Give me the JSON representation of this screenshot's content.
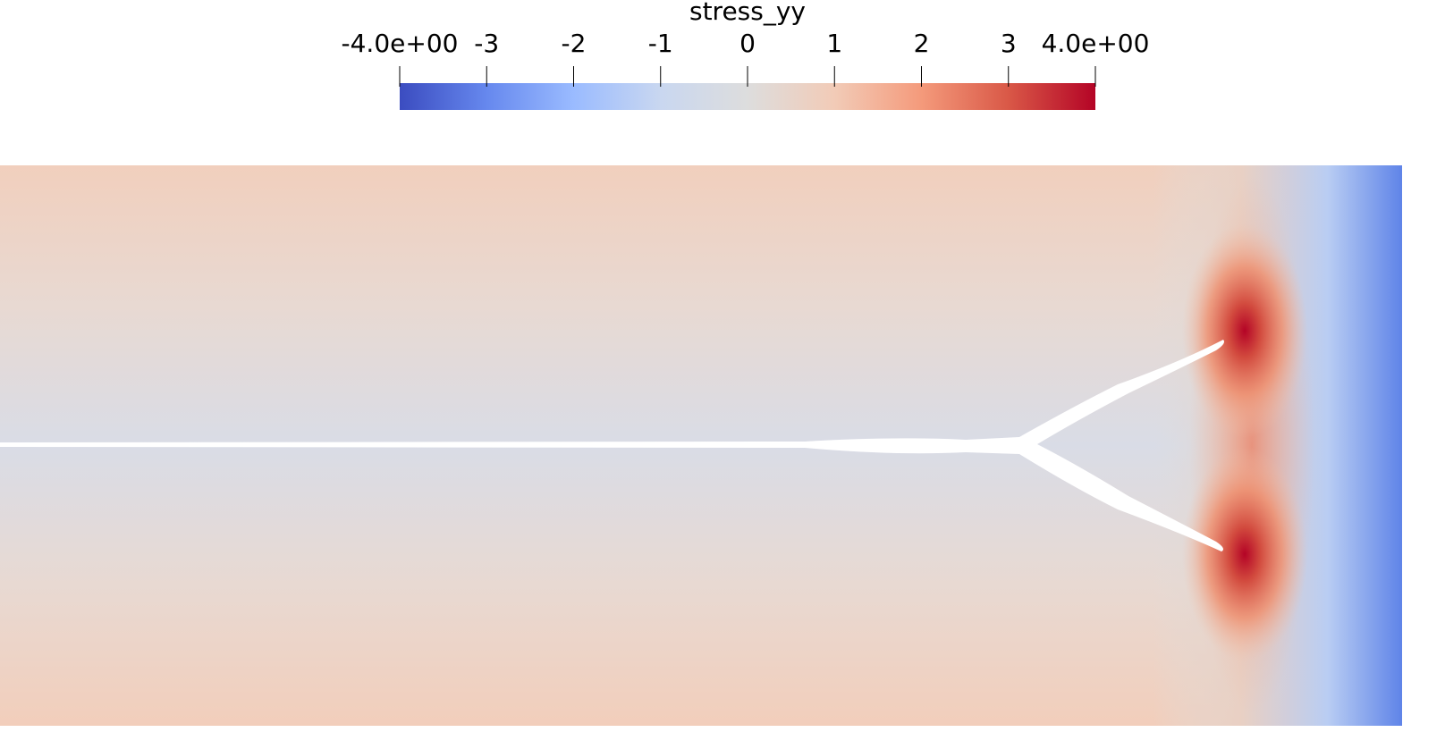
{
  "colorbar": {
    "title": "stress_yy",
    "range": [
      -4,
      4
    ],
    "ticks": [
      {
        "value": -4,
        "label": "-4.0e+00"
      },
      -3,
      -2,
      -1,
      0,
      1,
      2,
      3,
      {
        "value": 4,
        "label": "4.0e+00"
      }
    ],
    "colors": [
      "#3b4cc0",
      "#6688ee",
      "#9abbff",
      "#c9d7f0",
      "#dddddd",
      "#f2cbb7",
      "#f49a7b",
      "#d95847",
      "#b40426"
    ]
  }
}
